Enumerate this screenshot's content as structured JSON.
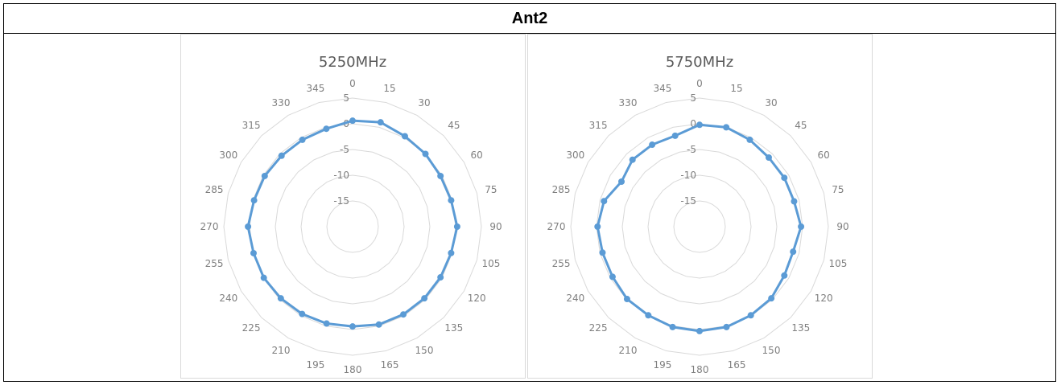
{
  "header": {
    "title": "Ant2"
  },
  "chart_data": [
    {
      "type": "radar",
      "title": "5250MHz",
      "angles": [
        "0",
        "15",
        "30",
        "45",
        "60",
        "75",
        "90",
        "105",
        "120",
        "135",
        "150",
        "165",
        "180",
        "195",
        "210",
        "225",
        "240",
        "255",
        "270",
        "285",
        "300",
        "315",
        "330",
        "345"
      ],
      "radial_ticks": [
        "5",
        "0",
        "-5",
        "-10",
        "-15"
      ],
      "rlim": [
        -20,
        5
      ],
      "series_color": "#5b9bd5",
      "series": [
        {
          "values": [
            0.6,
            1.0,
            0.3,
            0.0,
            -0.3,
            -0.2,
            0.3,
            -0.2,
            -0.3,
            -0.3,
            -0.3,
            -0.3,
            -0.6,
            -0.5,
            -0.4,
            -0.3,
            -0.1,
            -0.1,
            0.3,
            -0.2,
            -0.3,
            -0.5,
            -0.5,
            -0.3
          ]
        }
      ]
    },
    {
      "type": "radar",
      "title": "5750MHz",
      "angles": [
        "0",
        "15",
        "30",
        "45",
        "60",
        "75",
        "90",
        "105",
        "120",
        "135",
        "150",
        "165",
        "180",
        "195",
        "210",
        "225",
        "240",
        "255",
        "270",
        "285",
        "300",
        "315",
        "330",
        "345"
      ],
      "radial_ticks": [
        "5",
        "0",
        "-5",
        "-10",
        "-15"
      ],
      "rlim": [
        -20,
        5
      ],
      "series_color": "#5b9bd5",
      "series": [
        {
          "values": [
            -0.2,
            0.0,
            -0.5,
            -1.0,
            -1.0,
            -1.0,
            -0.3,
            -1.2,
            -1.0,
            -0.3,
            -0.1,
            0.2,
            0.3,
            0.2,
            -0.1,
            -0.1,
            -0.5,
            -0.5,
            -0.2,
            -0.8,
            -2.5,
            -1.6,
            -1.6,
            -1.7
          ]
        }
      ]
    }
  ]
}
